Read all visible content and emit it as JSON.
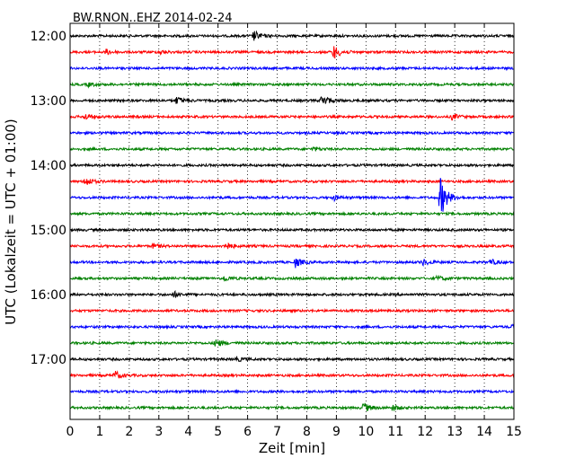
{
  "chart_data": {
    "type": "line",
    "title": "BW.RNON..EHZ 2014-02-24",
    "xlabel": "Zeit  [min]",
    "ylabel": "UTC (Lokalzeit = UTC + 01:00)",
    "xlim": [
      0,
      15
    ],
    "x_ticks": [
      "0",
      "1",
      "2",
      "3",
      "4",
      "5",
      "6",
      "7",
      "8",
      "9",
      "10",
      "11",
      "12",
      "13",
      "14",
      "15"
    ],
    "y_ticks": [
      "12:00",
      "13:00",
      "14:00",
      "15:00",
      "16:00",
      "17:00"
    ],
    "grid": "dotted vertical",
    "trace_colors": [
      "#000000",
      "#ff0000",
      "#0000ff",
      "#008000"
    ],
    "traces": [
      {
        "start": "12:00",
        "amplitude": 1.0,
        "events": [
          {
            "t": 6.2,
            "amp": 1.6
          }
        ]
      },
      {
        "start": "12:15",
        "amplitude": 1.0,
        "events": [
          {
            "t": 1.2,
            "amp": 0.8
          },
          {
            "t": 3.0,
            "amp": 0.6
          },
          {
            "t": 8.9,
            "amp": 2.2
          }
        ]
      },
      {
        "start": "12:30",
        "amplitude": 1.0,
        "events": []
      },
      {
        "start": "12:45",
        "amplitude": 1.0,
        "events": [
          {
            "t": 0.6,
            "amp": 0.6
          }
        ]
      },
      {
        "start": "13:00",
        "amplitude": 1.0,
        "events": [
          {
            "t": 3.6,
            "amp": 1.2
          },
          {
            "t": 8.5,
            "amp": 2.0
          }
        ]
      },
      {
        "start": "13:15",
        "amplitude": 1.0,
        "events": [
          {
            "t": 0.5,
            "amp": 0.9
          },
          {
            "t": 12.9,
            "amp": 0.9
          }
        ]
      },
      {
        "start": "13:30",
        "amplitude": 1.0,
        "events": []
      },
      {
        "start": "13:45",
        "amplitude": 1.0,
        "events": [
          {
            "t": 8.2,
            "amp": 0.6
          }
        ]
      },
      {
        "start": "14:00",
        "amplitude": 1.0,
        "events": []
      },
      {
        "start": "14:15",
        "amplitude": 1.0,
        "events": [
          {
            "t": 0.5,
            "amp": 1.5
          }
        ]
      },
      {
        "start": "14:30",
        "amplitude": 1.0,
        "events": [
          {
            "t": 8.9,
            "amp": 0.8
          },
          {
            "t": 12.5,
            "amp": 7.0
          }
        ]
      },
      {
        "start": "14:45",
        "amplitude": 1.0,
        "events": []
      },
      {
        "start": "15:00",
        "amplitude": 1.0,
        "events": []
      },
      {
        "start": "15:15",
        "amplitude": 1.0,
        "events": [
          {
            "t": 2.8,
            "amp": 0.7
          },
          {
            "t": 5.2,
            "amp": 1.4
          }
        ]
      },
      {
        "start": "15:30",
        "amplitude": 1.0,
        "events": [
          {
            "t": 7.6,
            "amp": 1.6
          },
          {
            "t": 11.9,
            "amp": 1.0
          },
          {
            "t": 14.2,
            "amp": 0.9
          }
        ]
      },
      {
        "start": "15:45",
        "amplitude": 1.0,
        "events": [
          {
            "t": 5.2,
            "amp": 0.8
          },
          {
            "t": 12.4,
            "amp": 0.8
          }
        ]
      },
      {
        "start": "16:00",
        "amplitude": 1.0,
        "events": [
          {
            "t": 3.5,
            "amp": 0.9
          }
        ]
      },
      {
        "start": "16:15",
        "amplitude": 1.0,
        "events": []
      },
      {
        "start": "16:30",
        "amplitude": 1.0,
        "events": [
          {
            "t": 14.9,
            "amp": 0.6
          }
        ]
      },
      {
        "start": "16:45",
        "amplitude": 1.0,
        "events": [
          {
            "t": 4.9,
            "amp": 1.4
          }
        ]
      },
      {
        "start": "17:00",
        "amplitude": 1.0,
        "events": [
          {
            "t": 5.6,
            "amp": 0.7
          }
        ]
      },
      {
        "start": "17:15",
        "amplitude": 1.0,
        "events": [
          {
            "t": 1.5,
            "amp": 1.4
          }
        ]
      },
      {
        "start": "17:30",
        "amplitude": 1.0,
        "events": []
      },
      {
        "start": "17:45",
        "amplitude": 1.0,
        "events": [
          {
            "t": 9.9,
            "amp": 1.6
          },
          {
            "t": 10.9,
            "amp": 0.9
          }
        ]
      }
    ]
  }
}
